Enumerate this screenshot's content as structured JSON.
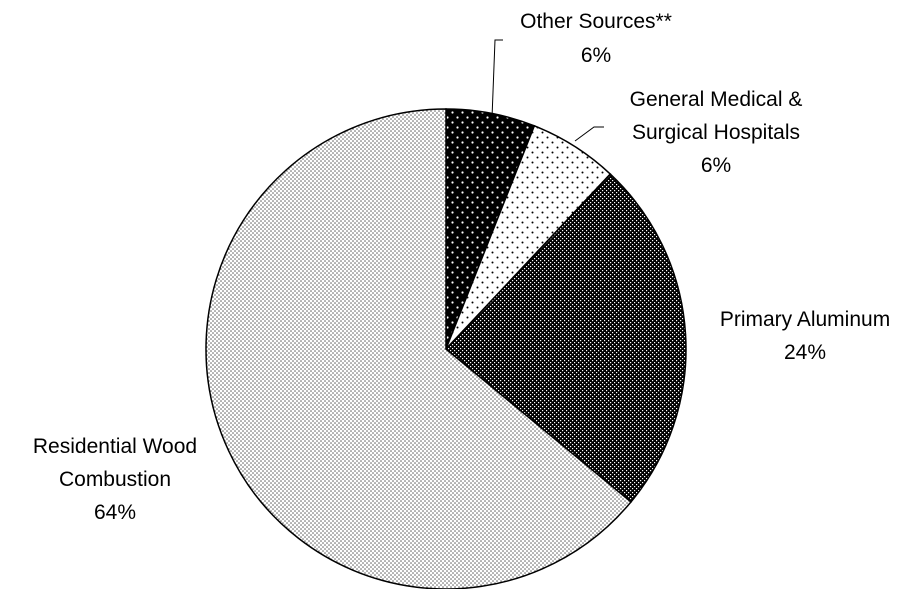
{
  "chart_data": {
    "type": "pie",
    "title": "",
    "slices": [
      {
        "name": "Other Sources**",
        "value": 6,
        "label": "6%",
        "fill": "black-dots"
      },
      {
        "name": "General Medical & Surgical Hospitals",
        "value": 6,
        "label": "6%",
        "fill": "white-dots"
      },
      {
        "name": "Primary Aluminum",
        "value": 24,
        "label": "24%",
        "fill": "dark-checker"
      },
      {
        "name": "Residential Wood Combustion",
        "value": 64,
        "label": "64%",
        "fill": "light-dots"
      }
    ],
    "start_angle": "12 o'clock",
    "direction": "clockwise",
    "legend": "none",
    "labels": {
      "other_name": "Other Sources**",
      "other_pct": "6%",
      "hospitals_name_line1": "General Medical &",
      "hospitals_name_line2": "Surgical Hospitals",
      "hospitals_pct": "6%",
      "aluminum_name": "Primary Aluminum",
      "aluminum_pct": "24%",
      "wood_name_line1": "Residential Wood",
      "wood_name_line2": "Combustion",
      "wood_pct": "64%"
    },
    "colors": {
      "outline": "#000000",
      "background": "#ffffff"
    }
  }
}
